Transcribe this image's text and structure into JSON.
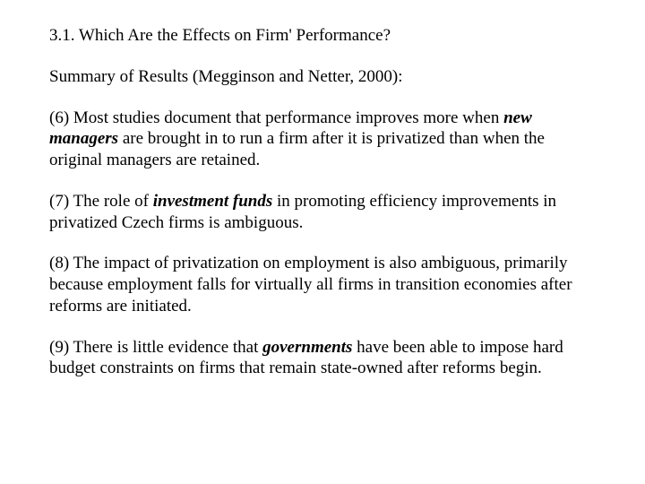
{
  "title": "3.1. Which Are the Effects on Firm' Performance?",
  "summary": "Summary of Results (Megginson and Netter, 2000):",
  "p6": {
    "pre": "(6) Most studies document that performance improves more when ",
    "em": "new managers",
    "post": " are brought in to run a firm after it is privatized than when the original managers are retained."
  },
  "p7": {
    "pre": "(7) The role of ",
    "em": "investment funds",
    "post": " in promoting efficiency improvements in privatized Czech firms is ambiguous."
  },
  "p8": "(8) The impact of privatization on employment is also ambiguous, primarily because employment falls for virtually all firms in transition economies after reforms are initiated.",
  "p9": {
    "pre": "(9) There is little evidence that ",
    "em": "governments",
    "post": " have been able to impose hard budget constraints on firms that remain state-owned after reforms begin."
  },
  "styling": {
    "font_family": "Times New Roman",
    "font_size_pt": 14,
    "text_color": "#000000",
    "background_color": "#ffffff",
    "emphasis": "bold italic"
  }
}
